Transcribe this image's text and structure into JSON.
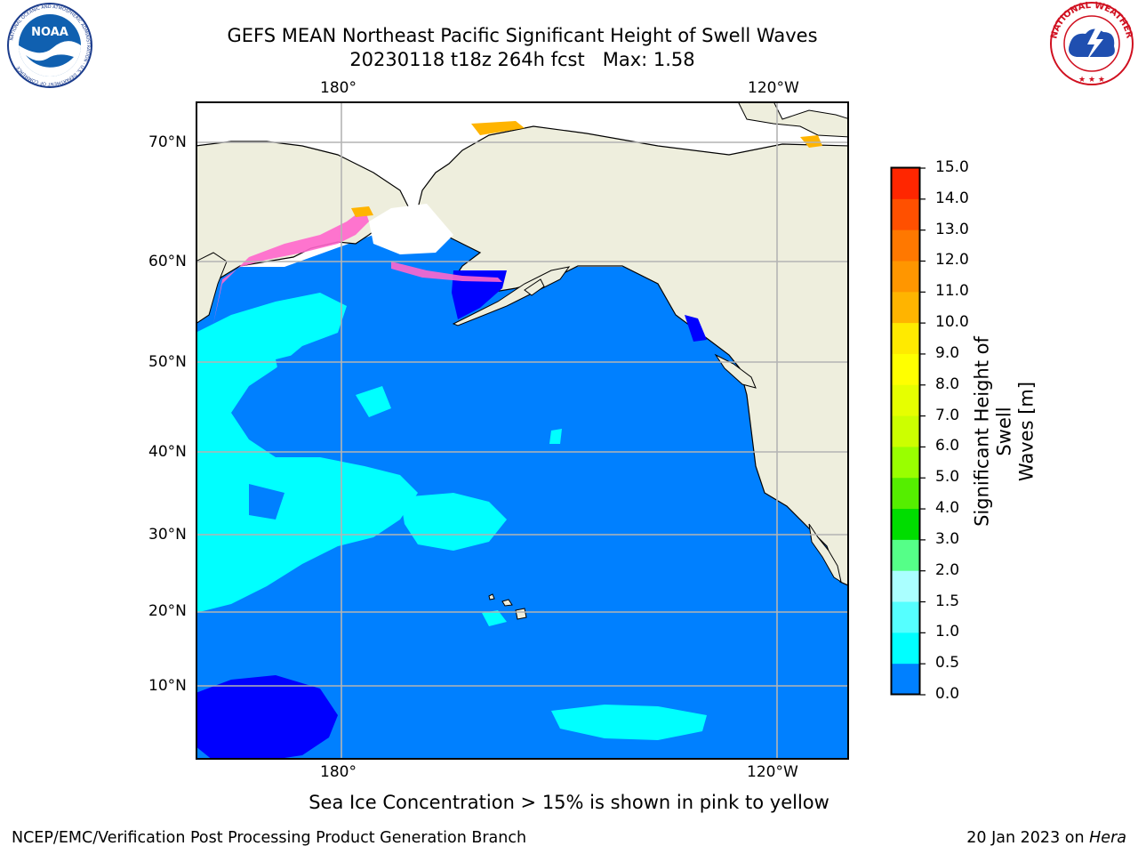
{
  "header": {
    "title_line1": "GEFS MEAN Northeast Pacific Significant Height of Swell Waves",
    "title_line2": "20230118 t18z 264h fcst   Max: 1.58"
  },
  "logos": {
    "left_text": "NOAA",
    "left_ring_text": "NATIONAL OCEANIC AND ATMOSPHERIC ADMINISTRATION · U.S. DEPARTMENT OF COMMERCE",
    "right_ring_text": "NATIONAL WEATHER SERVICE"
  },
  "map": {
    "lon_top": [
      "180°",
      "120°W"
    ],
    "lon_bottom": [
      "180°",
      "120°W"
    ],
    "lat": [
      "70°N",
      "60°N",
      "50°N",
      "40°N",
      "30°N",
      "20°N",
      "10°N"
    ],
    "colors": {
      "ocean": "#0080ff",
      "land": "#eeeedd",
      "swell_1_1p5": "#00ffff",
      "swell_0_0p5": "#0000ff",
      "grid": "#b4b4b4"
    }
  },
  "colorbar": {
    "label_line1": "Significant Height of Swell",
    "label_line2": "Waves [m]",
    "ticks": [
      "15.0",
      "14.0",
      "13.0",
      "12.0",
      "11.0",
      "10.0",
      "9.0",
      "8.0",
      "7.0",
      "6.0",
      "5.0",
      "4.0",
      "3.0",
      "2.0",
      "1.5",
      "1.0",
      "0.5",
      "0.0"
    ],
    "colors": [
      "#ff0000",
      "#ff2600",
      "#ff5000",
      "#ff7800",
      "#ff9600",
      "#ffb400",
      "#ffea00",
      "#ffff00",
      "#e6ff00",
      "#ccff00",
      "#99ff00",
      "#55ee00",
      "#00dd00",
      "#55ff88",
      "#aaffff",
      "#55ffff",
      "#00ffff",
      "#0080ff",
      "#0000ff"
    ]
  },
  "footer": {
    "note": "Sea Ice Concentration > 15% is shown in pink to yellow",
    "left": "NCEP/EMC/Verification Post Processing Product Generation Branch",
    "right_date": "20 Jan 2023 on ",
    "right_host": "Hera"
  }
}
